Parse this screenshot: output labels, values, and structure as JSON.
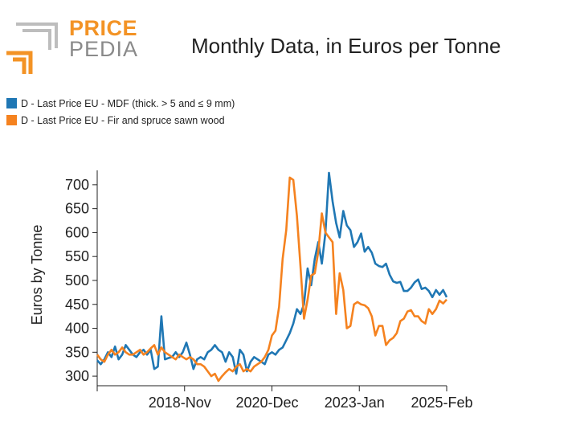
{
  "logo": {
    "line1": "PRICE",
    "line2": "PEDIA"
  },
  "colors": {
    "series1": "#1f77b4",
    "series2": "#f5821f",
    "logo_orange": "#f39325",
    "logo_gray": "#8a8a8a"
  },
  "chart_data": {
    "type": "line",
    "title": "Monthly Data, in Euros per Tonne",
    "ylabel": "Euros by Tonne",
    "xlabel": "",
    "ylim": [
      280,
      730
    ],
    "yticks": [
      300,
      350,
      400,
      450,
      500,
      550,
      600,
      650,
      700
    ],
    "xticks": [
      "2018-Nov",
      "2020-Dec",
      "2023-Jan",
      "2025-Feb"
    ],
    "x_start": "2016-Oct",
    "x_end": "2025-Feb",
    "legend_position": "top-left",
    "series": [
      {
        "name": "D - Last Price EU - MDF (thick. > 5 and ≤ 9 mm)",
        "color": "#1f77b4",
        "values": [
          333,
          325,
          335,
          350,
          340,
          362,
          335,
          345,
          365,
          355,
          345,
          340,
          350,
          355,
          345,
          355,
          315,
          320,
          425,
          335,
          338,
          340,
          350,
          340,
          350,
          370,
          345,
          315,
          335,
          340,
          335,
          350,
          355,
          365,
          355,
          350,
          330,
          350,
          340,
          305,
          355,
          345,
          310,
          330,
          340,
          335,
          330,
          325,
          345,
          350,
          345,
          355,
          360,
          375,
          390,
          410,
          440,
          430,
          450,
          525,
          490,
          545,
          580,
          535,
          600,
          725,
          665,
          620,
          590,
          645,
          615,
          605,
          570,
          580,
          598,
          560,
          570,
          558,
          535,
          530,
          528,
          535,
          512,
          498,
          495,
          497,
          478,
          478,
          485,
          496,
          502,
          482,
          485,
          478,
          465,
          480,
          470,
          480,
          465
        ]
      },
      {
        "name": "D - Last Price EU - Fir and spruce sawn wood",
        "color": "#f5821f",
        "values": [
          345,
          335,
          330,
          345,
          355,
          345,
          350,
          360,
          350,
          345,
          345,
          350,
          355,
          345,
          350,
          358,
          365,
          345,
          360,
          350,
          345,
          340,
          335,
          345,
          340,
          335,
          340,
          335,
          325,
          325,
          320,
          310,
          300,
          305,
          290,
          300,
          308,
          315,
          310,
          320,
          325,
          310,
          315,
          310,
          320,
          325,
          330,
          340,
          355,
          385,
          395,
          445,
          545,
          605,
          715,
          710,
          635,
          530,
          420,
          460,
          510,
          515,
          560,
          640,
          600,
          590,
          580,
          430,
          515,
          480,
          400,
          405,
          450,
          455,
          450,
          448,
          442,
          425,
          385,
          405,
          405,
          365,
          375,
          380,
          390,
          415,
          420,
          435,
          438,
          425,
          425,
          415,
          410,
          440,
          430,
          440,
          458,
          452,
          460
        ]
      }
    ]
  }
}
